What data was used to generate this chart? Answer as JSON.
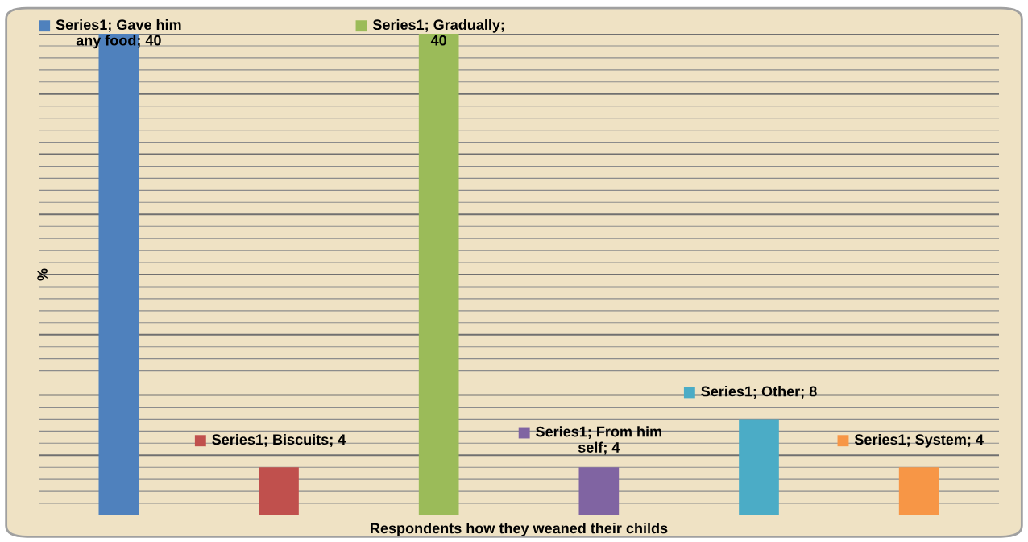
{
  "chart_data": {
    "type": "bar",
    "xlabel": "Respondents how they weaned their childs",
    "ylabel": "%",
    "categories": [
      null,
      null,
      null,
      null,
      null,
      null
    ],
    "values": [
      40,
      4,
      40,
      4,
      8,
      4
    ],
    "colors": [
      "#4f81bd",
      "#c0504d",
      "#9bbb59",
      "#8064a2",
      "#4bacc6",
      "#f79646"
    ],
    "value_labels": [
      "Series1; Gave him\nany food; 40",
      "Series1; Biscuits; 4",
      "Series1; Gradually;\n40",
      "Series1; From him\nself; 4",
      "Series1; Other; 8",
      "Series1; System; 4"
    ],
    "ylim": [
      0,
      40
    ],
    "yticks": [
      {
        "value": 0,
        "label": null
      },
      {
        "value": 1,
        "label": null
      },
      {
        "value": 2,
        "label": null
      },
      {
        "value": 3,
        "label": null
      },
      {
        "value": 4,
        "label": null
      },
      {
        "value": 5,
        "label": null
      },
      {
        "value": 6,
        "label": null
      },
      {
        "value": 7,
        "label": null
      },
      {
        "value": 8,
        "label": null
      },
      {
        "value": 9,
        "label": null
      },
      {
        "value": 10,
        "label": null
      },
      {
        "value": 11,
        "label": null
      },
      {
        "value": 12,
        "label": null
      },
      {
        "value": 13,
        "label": null
      },
      {
        "value": 14,
        "label": null
      },
      {
        "value": 15,
        "label": null
      },
      {
        "value": 16,
        "label": null
      },
      {
        "value": 17,
        "label": null
      },
      {
        "value": 18,
        "label": null
      },
      {
        "value": 19,
        "label": null
      },
      {
        "value": 20,
        "label": null
      },
      {
        "value": 21,
        "label": null
      },
      {
        "value": 22,
        "label": null
      },
      {
        "value": 23,
        "label": null
      },
      {
        "value": 24,
        "label": null
      },
      {
        "value": 25,
        "label": null
      },
      {
        "value": 26,
        "label": null
      },
      {
        "value": 27,
        "label": null
      },
      {
        "value": 28,
        "label": null
      },
      {
        "value": 29,
        "label": null
      },
      {
        "value": 30,
        "label": null
      },
      {
        "value": 31,
        "label": null
      },
      {
        "value": 32,
        "label": null
      },
      {
        "value": 33,
        "label": null
      },
      {
        "value": 34,
        "label": null
      },
      {
        "value": 35,
        "label": null
      },
      {
        "value": 36,
        "label": null
      },
      {
        "value": 37,
        "label": null
      },
      {
        "value": 38,
        "label": null
      },
      {
        "value": 39,
        "label": null
      },
      {
        "value": 40,
        "label": null
      }
    ],
    "grid": "y",
    "legend": false
  }
}
